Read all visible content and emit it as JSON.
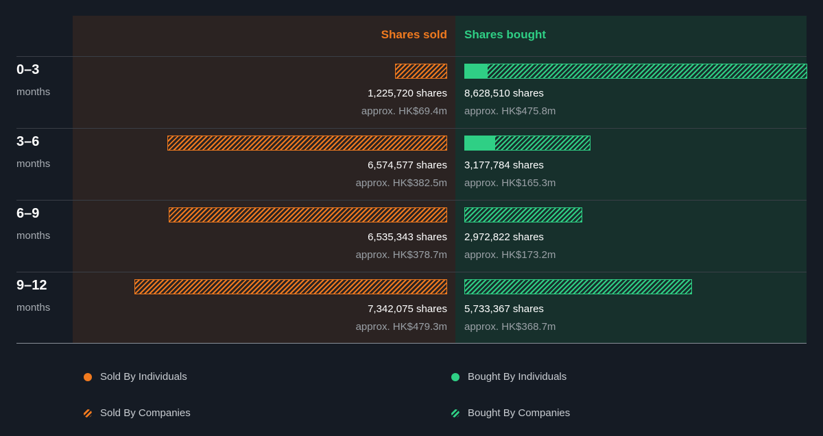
{
  "colors": {
    "sold": "#f07a1f",
    "bought": "#2fcf85",
    "sold_panel": "#2b2322",
    "bought_panel": "#17302c",
    "background": "#151b24"
  },
  "chart_data": {
    "type": "bar",
    "orientation": "horizontal-diverging",
    "headers": {
      "sold": "Shares sold",
      "bought": "Shares bought"
    },
    "categories": [
      {
        "period": "0–3",
        "unit": "months"
      },
      {
        "period": "3–6",
        "unit": "months"
      },
      {
        "period": "6–9",
        "unit": "months"
      },
      {
        "period": "9–12",
        "unit": "months"
      }
    ],
    "sold": [
      {
        "shares": 1225720,
        "shares_label": "1,225,720 shares",
        "value_label": "approx. HK$69.4m",
        "individuals": 0
      },
      {
        "shares": 6574577,
        "shares_label": "6,574,577 shares",
        "value_label": "approx. HK$382.5m",
        "individuals": 0
      },
      {
        "shares": 6535343,
        "shares_label": "6,535,343 shares",
        "value_label": "approx. HK$378.7m",
        "individuals": 0
      },
      {
        "shares": 7342075,
        "shares_label": "7,342,075 shares",
        "value_label": "approx. HK$479.3m",
        "individuals": 0
      }
    ],
    "bought": [
      {
        "shares": 8628510,
        "shares_label": "8,628,510 shares",
        "value_label": "approx. HK$475.8m",
        "individuals": 580000
      },
      {
        "shares": 3177784,
        "shares_label": "3,177,784 shares",
        "value_label": "approx. HK$165.3m",
        "individuals": 780000
      },
      {
        "shares": 2972822,
        "shares_label": "2,972,822 shares",
        "value_label": "approx. HK$173.2m",
        "individuals": 0
      },
      {
        "shares": 5733367,
        "shares_label": "5,733,367 shares",
        "value_label": "approx. HK$368.7m",
        "individuals": 0
      }
    ],
    "legend": [
      {
        "label": "Sold By Individuals",
        "style": "solid",
        "side": "sold"
      },
      {
        "label": "Bought By Individuals",
        "style": "solid",
        "side": "bought"
      },
      {
        "label": "Sold By Companies",
        "style": "hatched",
        "side": "sold"
      },
      {
        "label": "Bought By Companies",
        "style": "hatched",
        "side": "bought"
      }
    ]
  }
}
